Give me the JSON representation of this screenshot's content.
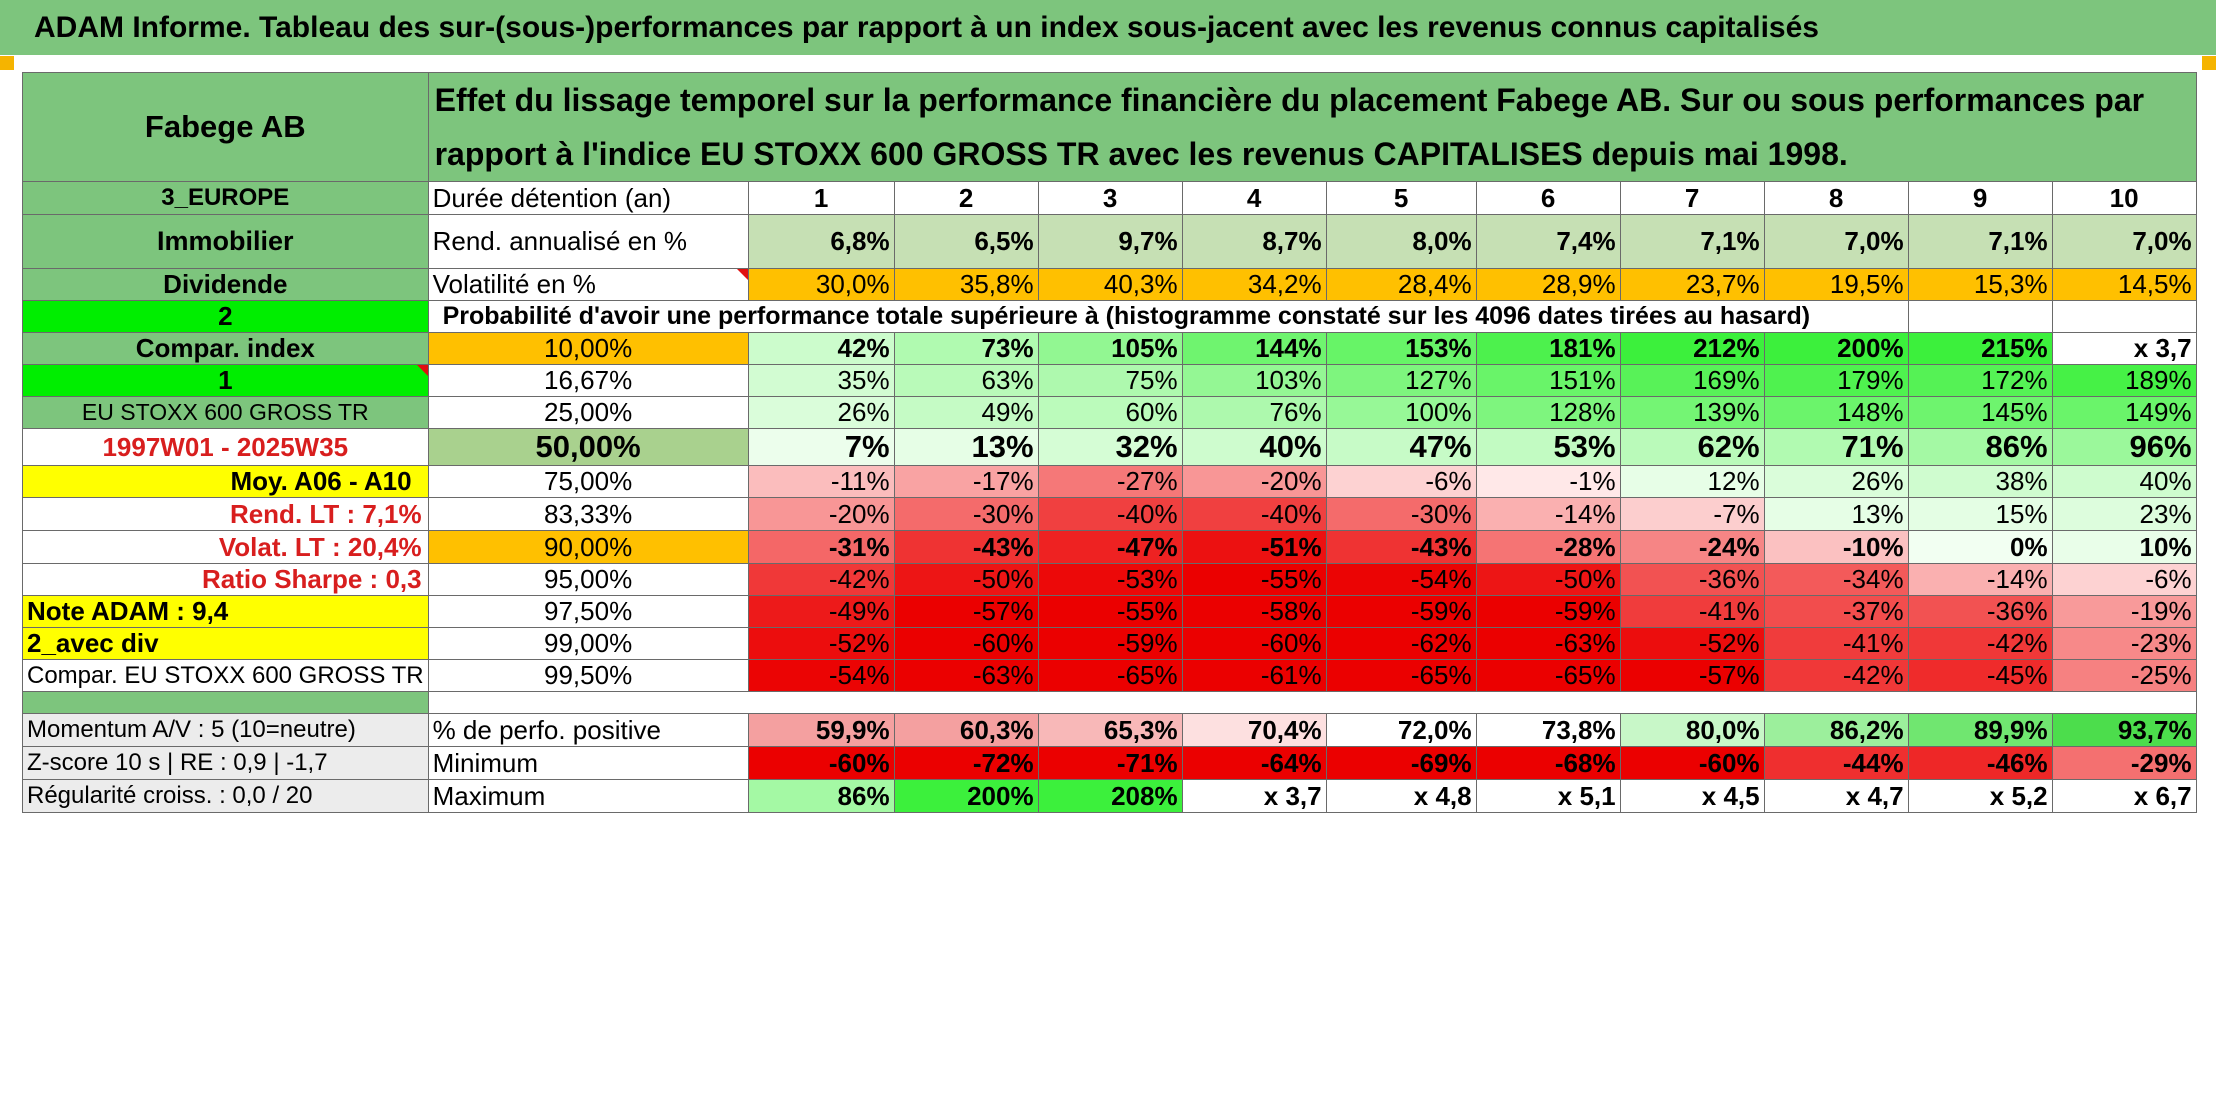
{
  "title": "ADAM Informe. Tableau des sur-(sous-)performances par rapport à un index sous-jacent avec les revenus connus capitalisés",
  "header": {
    "company": "Fabege AB",
    "description": "Effet du lissage temporel sur la performance financière du placement Fabege AB. Sur ou sous performances par rapport à l'indice EU STOXX 600 GROSS TR avec les revenus CAPITALISES depuis mai 1998."
  },
  "side": {
    "region": "3_EUROPE",
    "sector": "Immobilier",
    "dividend": "Dividende",
    "two": "2",
    "compar_index": "Compar. index",
    "one": "1",
    "index_name": "EU STOXX 600 GROSS TR",
    "period": "1997W01 - 2025W35",
    "moy": "Moy. A06 - A10",
    "rend_lt": "Rend. LT :   7,1%",
    "volat_lt": "Volat. LT :   20,4%",
    "sharpe": "Ratio Sharpe :   0,3",
    "note": "Note ADAM : 9,4",
    "avec_div": "2_avec div",
    "compar_full": "Compar. EU STOXX 600 GROSS TR",
    "momentum": "Momentum A/V : 5 (10=neutre)",
    "zscore": "Z-score 10 s | RE : 0,9 | -1,7",
    "regularite": "Régularité croiss. : 0,0 / 20"
  },
  "labels": {
    "duree": "Durée détention (an)",
    "rend": "Rend. annualisé en %",
    "volat": "Volatilité en %",
    "proba": "Probabilité d'avoir une performance totale supérieure à (histogramme constaté sur les 4096 dates tirées au hasard)",
    "perfo_pos": "% de perfo. positive",
    "minimum": "Minimum",
    "maximum": "Maximum"
  },
  "years": [
    "1",
    "2",
    "3",
    "4",
    "5",
    "6",
    "7",
    "8",
    "9",
    "10"
  ],
  "rend": [
    "6,8%",
    "6,5%",
    "9,7%",
    "8,7%",
    "8,0%",
    "7,4%",
    "7,1%",
    "7,0%",
    "7,1%",
    "7,0%"
  ],
  "volat": [
    "30,0%",
    "35,8%",
    "40,3%",
    "34,2%",
    "28,4%",
    "28,9%",
    "23,7%",
    "19,5%",
    "15,3%",
    "14,5%"
  ],
  "quantiles": [
    {
      "p": "10,00%",
      "v": [
        "42%",
        "73%",
        "105%",
        "144%",
        "153%",
        "181%",
        "212%",
        "200%",
        "215%",
        "x 3,7"
      ]
    },
    {
      "p": "16,67%",
      "v": [
        "35%",
        "63%",
        "75%",
        "103%",
        "127%",
        "151%",
        "169%",
        "179%",
        "172%",
        "189%"
      ]
    },
    {
      "p": "25,00%",
      "v": [
        "26%",
        "49%",
        "60%",
        "76%",
        "100%",
        "128%",
        "139%",
        "148%",
        "145%",
        "149%"
      ]
    },
    {
      "p": "50,00%",
      "v": [
        "7%",
        "13%",
        "32%",
        "40%",
        "47%",
        "53%",
        "62%",
        "71%",
        "86%",
        "96%"
      ]
    },
    {
      "p": "75,00%",
      "v": [
        "-11%",
        "-17%",
        "-27%",
        "-20%",
        "-6%",
        "-1%",
        "12%",
        "26%",
        "38%",
        "40%"
      ]
    },
    {
      "p": "83,33%",
      "v": [
        "-20%",
        "-30%",
        "-40%",
        "-40%",
        "-30%",
        "-14%",
        "-7%",
        "13%",
        "15%",
        "23%"
      ]
    },
    {
      "p": "90,00%",
      "v": [
        "-31%",
        "-43%",
        "-47%",
        "-51%",
        "-43%",
        "-28%",
        "-24%",
        "-10%",
        "0%",
        "10%"
      ]
    },
    {
      "p": "95,00%",
      "v": [
        "-42%",
        "-50%",
        "-53%",
        "-55%",
        "-54%",
        "-50%",
        "-36%",
        "-34%",
        "-14%",
        "-6%"
      ]
    },
    {
      "p": "97,50%",
      "v": [
        "-49%",
        "-57%",
        "-55%",
        "-58%",
        "-59%",
        "-59%",
        "-41%",
        "-37%",
        "-36%",
        "-19%"
      ]
    },
    {
      "p": "99,00%",
      "v": [
        "-52%",
        "-60%",
        "-59%",
        "-60%",
        "-62%",
        "-63%",
        "-52%",
        "-41%",
        "-42%",
        "-23%"
      ]
    },
    {
      "p": "99,50%",
      "v": [
        "-54%",
        "-63%",
        "-65%",
        "-61%",
        "-65%",
        "-65%",
        "-57%",
        "-42%",
        "-45%",
        "-25%"
      ]
    }
  ],
  "perfo_pos": [
    "59,9%",
    "60,3%",
    "65,3%",
    "70,4%",
    "72,0%",
    "73,8%",
    "80,0%",
    "86,2%",
    "89,9%",
    "93,7%"
  ],
  "minimum": [
    "-60%",
    "-72%",
    "-71%",
    "-64%",
    "-69%",
    "-68%",
    "-60%",
    "-44%",
    "-46%",
    "-29%"
  ],
  "maximum": [
    "86%",
    "200%",
    "208%",
    "x 3,7",
    "x 4,8",
    "x 5,1",
    "x 4,5",
    "x 4,7",
    "x 5,2",
    "x 6,7"
  ],
  "colors": {
    "title_bg": "#7dc57d",
    "yellow": "#ffff00",
    "orange": "#ffc000",
    "bright_green": "#00ee00",
    "label_red": "#d81e1e"
  }
}
